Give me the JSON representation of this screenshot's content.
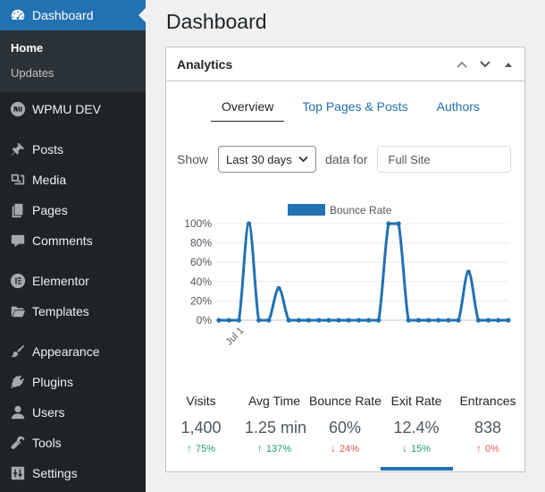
{
  "sidebar": {
    "dashboard": "Dashboard",
    "home": "Home",
    "updates": "Updates",
    "wpmudev": "WPMU DEV",
    "posts": "Posts",
    "media": "Media",
    "pages": "Pages",
    "comments": "Comments",
    "elementor": "Elementor",
    "templates": "Templates",
    "appearance": "Appearance",
    "plugins": "Plugins",
    "users": "Users",
    "tools": "Tools",
    "settings": "Settings"
  },
  "page_title": "Dashboard",
  "panel": {
    "title": "Analytics",
    "tabs": [
      "Overview",
      "Top Pages & Posts",
      "Authors"
    ],
    "filters": {
      "show_label": "Show",
      "period": "Last 30 days",
      "data_for_label": "data for",
      "scope_placeholder": "Full Site"
    }
  },
  "chart_data": {
    "type": "line",
    "legend": "Bounce Rate",
    "x_tick_label": "Jul 1",
    "y_ticks": [
      "0%",
      "20%",
      "40%",
      "60%",
      "80%",
      "100%"
    ],
    "ylim": [
      0,
      100
    ],
    "grid": true,
    "series": [
      {
        "name": "Bounce Rate",
        "values": [
          0,
          0,
          0,
          100,
          0,
          0,
          33,
          0,
          0,
          0,
          0,
          0,
          0,
          0,
          0,
          0,
          0,
          100,
          100,
          0,
          0,
          0,
          0,
          0,
          0,
          50,
          0,
          0,
          0,
          0
        ]
      }
    ],
    "color": "#2271b1"
  },
  "stats": [
    {
      "label": "Visits",
      "value": "1,400",
      "change": "75%",
      "direction": "up"
    },
    {
      "label": "Avg Time",
      "value": "1.25 min",
      "change": "137%",
      "direction": "up"
    },
    {
      "label": "Bounce Rate",
      "value": "60%",
      "change": "24%",
      "direction": "down"
    },
    {
      "label": "Exit Rate",
      "value": "12.4%",
      "change": "15%",
      "direction": "up"
    },
    {
      "label": "Entrances",
      "value": "838",
      "change": "0%",
      "direction": "down"
    }
  ],
  "colors": {
    "sidebar_bg": "#1d2327",
    "accent": "#2271b1",
    "up": "#1a9b7d",
    "down": "#e2574c"
  }
}
